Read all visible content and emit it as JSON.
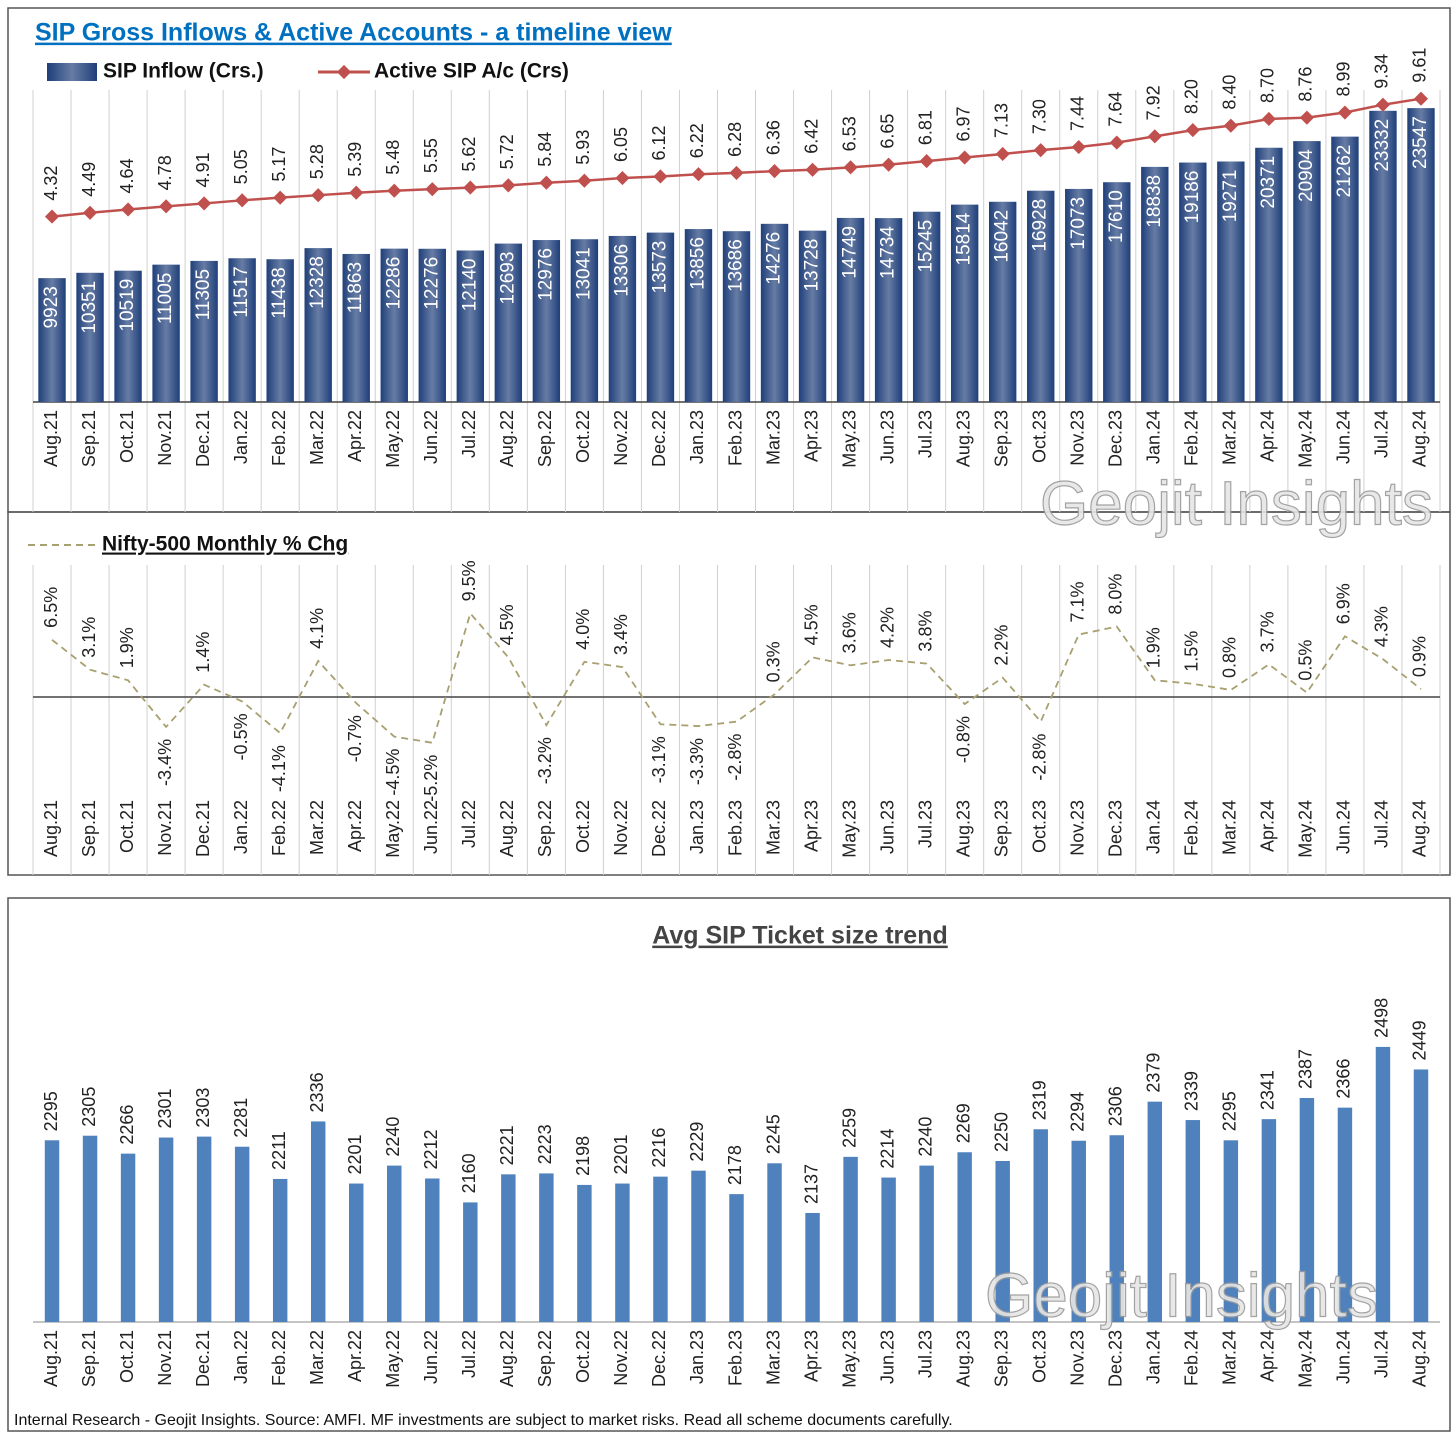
{
  "chart_data": [
    {
      "type": "combo",
      "title": "SIP Gross Inflows & Active Accounts - a timeline view",
      "categories": [
        "Aug.21",
        "Sep.21",
        "Oct.21",
        "Nov.21",
        "Dec.21",
        "Jan.22",
        "Feb.22",
        "Mar.22",
        "Apr.22",
        "May.22",
        "Jun.22",
        "Jul.22",
        "Aug.22",
        "Sep.22",
        "Oct.22",
        "Nov.22",
        "Dec.22",
        "Jan.23",
        "Feb.23",
        "Mar.23",
        "Apr.23",
        "May.23",
        "Jun.23",
        "Jul.23",
        "Aug.23",
        "Sep.23",
        "Oct.23",
        "Nov.23",
        "Dec.23",
        "Jan.24",
        "Feb.24",
        "Mar.24",
        "Apr.24",
        "May.24",
        "Jun.24",
        "Jul.24",
        "Aug.24"
      ],
      "series": [
        {
          "name": "SIP Inflow (Crs.)",
          "type": "bar",
          "color": "#1f3f7a",
          "values": [
            9923,
            10351,
            10519,
            11005,
            11305,
            11517,
            11438,
            12328,
            11863,
            12286,
            12276,
            12140,
            12693,
            12976,
            13041,
            13306,
            13573,
            13856,
            13686,
            14276,
            13728,
            14749,
            14734,
            15245,
            15814,
            16042,
            16928,
            17073,
            17610,
            18838,
            19186,
            19271,
            20371,
            20904,
            21262,
            23332,
            23547
          ]
        },
        {
          "name": "Active SIP A/c (Crs)",
          "type": "line",
          "axis": "y2",
          "color": "#c0504d",
          "values": [
            4.32,
            4.49,
            4.64,
            4.78,
            4.91,
            5.05,
            5.17,
            5.28,
            5.39,
            5.48,
            5.55,
            5.62,
            5.72,
            5.84,
            5.93,
            6.05,
            6.12,
            6.22,
            6.28,
            6.36,
            6.42,
            6.53,
            6.65,
            6.81,
            6.97,
            7.13,
            7.3,
            7.44,
            7.64,
            7.92,
            8.2,
            8.4,
            8.7,
            8.76,
            8.99,
            9.34,
            9.61
          ],
          "value_labels": [
            "4.32",
            "4.49",
            "4.64",
            "4.78",
            "4.91",
            "5.05",
            "5.17",
            "5.28",
            "5.39",
            "5.48",
            "5.55",
            "5.62",
            "5.72",
            "5.84",
            "5.93",
            "6.05",
            "6.12",
            "6.22",
            "6.28",
            "6.36",
            "6.42",
            "6.53",
            "6.65",
            "6.81",
            "6.97",
            "7.13",
            "7.30",
            "7.44",
            "7.64",
            "7.92",
            "8.20",
            "8.40",
            "8.70",
            "8.76",
            "8.99",
            "9.34",
            "9.61"
          ]
        }
      ],
      "ylim": [
        0,
        25000
      ],
      "y2lim": [
        -4,
        10
      ]
    },
    {
      "type": "line",
      "categories": [
        "Aug.21",
        "Sep.21",
        "Oct.21",
        "Nov.21",
        "Dec.21",
        "Jan.22",
        "Feb.22",
        "Mar.22",
        "Apr.22",
        "May.22",
        "Jun.22",
        "Jul.22",
        "Aug.22",
        "Sep.22",
        "Oct.22",
        "Nov.22",
        "Dec.22",
        "Jan.23",
        "Feb.23",
        "Mar.23",
        "Apr.23",
        "May.23",
        "Jun.23",
        "Jul.23",
        "Aug.23",
        "Sep.23",
        "Oct.23",
        "Nov.23",
        "Dec.23",
        "Jan.24",
        "Feb.24",
        "Mar.24",
        "Apr.24",
        "May.24",
        "Jun.24",
        "Jul.24",
        "Aug.24"
      ],
      "series": [
        {
          "name": "Nifty-500 Monthly % Chg",
          "color": "#a8a070",
          "dashed": true,
          "values": [
            6.5,
            3.1,
            1.9,
            -3.4,
            1.4,
            -0.5,
            -4.1,
            4.1,
            -0.7,
            -4.5,
            -5.2,
            9.5,
            4.5,
            -3.2,
            4.0,
            3.4,
            -3.1,
            -3.3,
            -2.8,
            0.3,
            4.5,
            3.6,
            4.2,
            3.8,
            -0.8,
            2.2,
            -2.8,
            7.1,
            8.0,
            1.9,
            1.5,
            0.8,
            3.7,
            0.5,
            6.9,
            4.3,
            0.9
          ],
          "value_labels": [
            "6.5%",
            "3.1%",
            "1.9%",
            "-3.4%",
            "1.4%",
            "-0.5%",
            "-4.1%",
            "4.1%",
            "-0.7%",
            "-4.5%",
            "-5.2%",
            "9.5%",
            "4.5%",
            "-3.2%",
            "4.0%",
            "3.4%",
            "-3.1%",
            "-3.3%",
            "-2.8%",
            "0.3%",
            "4.5%",
            "3.6%",
            "4.2%",
            "3.8%",
            "-0.8%",
            "2.2%",
            "-2.8%",
            "7.1%",
            "8.0%",
            "1.9%",
            "1.5%",
            "0.8%",
            "3.7%",
            "0.5%",
            "6.9%",
            "4.3%",
            "0.9%"
          ]
        }
      ],
      "ylim": [
        -10,
        15
      ]
    },
    {
      "type": "bar",
      "title": "Avg SIP Ticket size trend",
      "categories": [
        "Aug.21",
        "Sep.21",
        "Oct.21",
        "Nov.21",
        "Dec.21",
        "Jan.22",
        "Feb.22",
        "Mar.22",
        "Apr.22",
        "May.22",
        "Jun.22",
        "Jul.22",
        "Aug.22",
        "Sep.22",
        "Oct.22",
        "Nov.22",
        "Dec.22",
        "Jan.23",
        "Feb.23",
        "Mar.23",
        "Apr.23",
        "May.23",
        "Jun.23",
        "Jul.23",
        "Aug.23",
        "Sep.23",
        "Oct.23",
        "Nov.23",
        "Dec.23",
        "Jan.24",
        "Feb.24",
        "Mar.24",
        "Apr.24",
        "May.24",
        "Jun.24",
        "Jul.24",
        "Aug.24"
      ],
      "values": [
        2295,
        2305,
        2266,
        2301,
        2303,
        2281,
        2211,
        2336,
        2201,
        2240,
        2212,
        2160,
        2221,
        2223,
        2198,
        2201,
        2216,
        2229,
        2178,
        2245,
        2137,
        2259,
        2214,
        2240,
        2269,
        2250,
        2319,
        2294,
        2306,
        2379,
        2339,
        2295,
        2341,
        2387,
        2366,
        2498,
        2449
      ],
      "color": "#4f81bd",
      "ylim": [
        1900,
        2600
      ]
    }
  ],
  "watermark": "Geojit Insights",
  "footer": "Internal Research - Geojit Insights. Source: AMFI. MF investments are subject to market risks. Read all scheme documents carefully."
}
